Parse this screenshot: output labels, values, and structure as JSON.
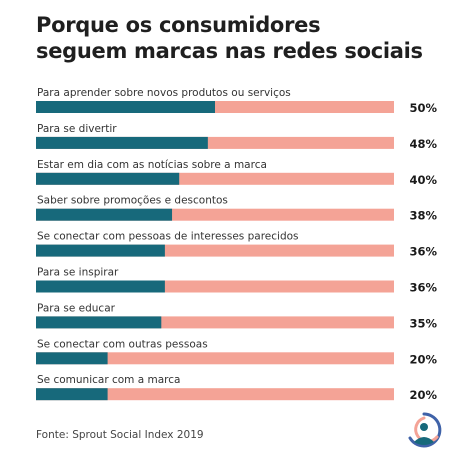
{
  "title_lines": [
    "Porque os consumidores",
    "seguem marcas nas redes sociais"
  ],
  "source": "Fonte: Sprout Social Index 2019",
  "colors": {
    "filled": "#17697b",
    "remainder": "#f4a396"
  },
  "logo_icon": "sprout-social-logo-icon",
  "chart_data": {
    "type": "bar",
    "orientation": "horizontal",
    "stacked_remainder": true,
    "categories": [
      "Para aprender sobre novos produtos ou serviços",
      "Para se divertir",
      "Estar em dia com as notícias sobre a marca",
      "Saber sobre promoções e descontos",
      "Se conectar com pessoas de interesses parecidos",
      "Para se inspirar",
      "Para se educar",
      "Se conectar com outras pessoas",
      "Se comunicar com a marca"
    ],
    "values": [
      50,
      48,
      40,
      38,
      36,
      36,
      35,
      20,
      20
    ],
    "value_labels": [
      "50%",
      "48%",
      "40%",
      "38%",
      "36%",
      "36%",
      "35%",
      "20%",
      "20%"
    ],
    "xlim": [
      0,
      100
    ],
    "title": "Porque os consumidores seguem marcas nas redes sociais",
    "grid": false,
    "legend": "none"
  }
}
